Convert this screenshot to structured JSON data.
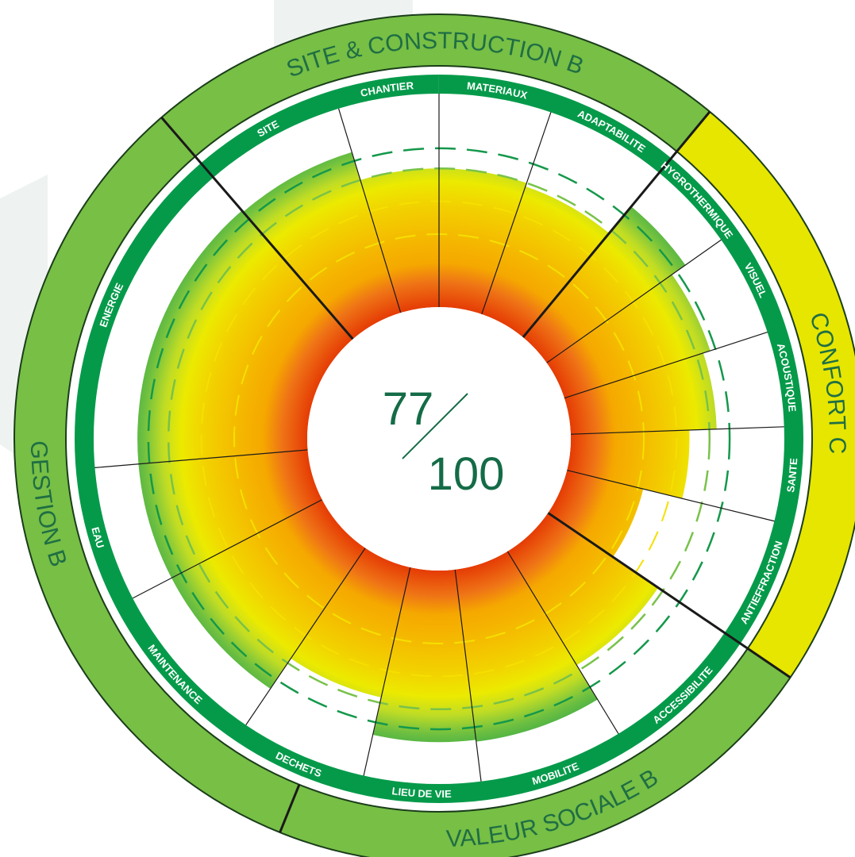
{
  "score": {
    "value": "77",
    "max": "100"
  },
  "colors": {
    "outer_ring": "#77bf45",
    "confort_ring": "#e6e600",
    "band_green": "#059a4a",
    "score_text": "#146c47",
    "label_text": "#1f6e44",
    "petal_inner": "#e84a05",
    "petal_mid": "#f5b400",
    "petal_yellow": "#ecea00",
    "petal_green": "#3aab47"
  },
  "chart_data": {
    "type": "radial-bar",
    "max": 10,
    "categories": [
      {
        "name": "SITE & CONSTRUCTION",
        "grade": "B",
        "color": "#77bf45"
      },
      {
        "name": "CONFORT",
        "grade": "C",
        "color": "#e6e600"
      },
      {
        "name": "VALEUR SOCIALE",
        "grade": "B",
        "color": "#77bf45"
      },
      {
        "name": "GESTION",
        "grade": "B",
        "color": "#77bf45"
      }
    ],
    "criteria": [
      {
        "label": "SITE",
        "category": "SITE & CONSTRUCTION",
        "value": 9.2
      },
      {
        "label": "CHANTIER",
        "category": "SITE & CONSTRUCTION",
        "value": 7.6
      },
      {
        "label": "MATERIAUX",
        "category": "SITE & CONSTRUCTION",
        "value": 7.6
      },
      {
        "label": "ADAPTABILITE",
        "category": "SITE & CONSTRUCTION",
        "value": 7.4
      },
      {
        "label": "HYGROTHERMIQUE",
        "category": "CONFORT",
        "value": 9.3
      },
      {
        "label": "VISUEL",
        "category": "CONFORT",
        "value": 8.4
      },
      {
        "label": "ACOUSTIQUE",
        "category": "CONFORT",
        "value": 8.0
      },
      {
        "label": "SANTE",
        "category": "CONFORT",
        "value": 6.5
      },
      {
        "label": "ANTIEFFRACTION",
        "category": "VALEUR SOCIALE",
        "value": 4.3
      },
      {
        "label": "ACCESSIBILITE",
        "category": "VALEUR SOCIALE",
        "value": 7.3
      },
      {
        "label": "MOBILITE",
        "category": "VALEUR SOCIALE",
        "value": 9.5
      },
      {
        "label": "LIEU DE VIE",
        "category": "VALEUR SOCIALE",
        "value": 9.4
      },
      {
        "label": "DECHETS",
        "category": "GESTION",
        "value": 7.3
      },
      {
        "label": "MAINTENANCE",
        "category": "GESTION",
        "value": 9.3
      },
      {
        "label": "EAU",
        "category": "GESTION",
        "value": 9.3
      },
      {
        "label": "ENERGIE",
        "category": "GESTION",
        "value": 9.3
      }
    ],
    "reference_levels": [
      4.0,
      5.8,
      7.6,
      8.7
    ]
  }
}
